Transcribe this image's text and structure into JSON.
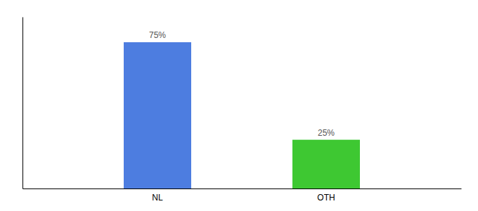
{
  "chart_data": {
    "type": "bar",
    "categories": [
      "NL",
      "OTH"
    ],
    "values": [
      75,
      25
    ],
    "value_labels": [
      "75%",
      "25%"
    ],
    "colors": [
      "#4d7de0",
      "#3ec832"
    ],
    "ylim": [
      0,
      88
    ],
    "data_labels": true,
    "tick_labels": "x"
  }
}
